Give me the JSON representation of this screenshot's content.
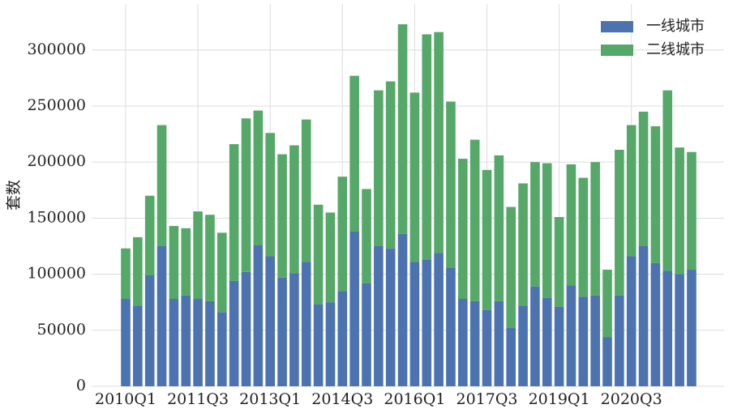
{
  "chart_data": {
    "type": "stacked_bar",
    "y_label": "套数",
    "categories": [
      "2010Q1",
      null,
      null,
      null,
      null,
      null,
      "2011Q3",
      null,
      null,
      null,
      null,
      null,
      "2013Q1",
      null,
      null,
      null,
      null,
      null,
      "2014Q3",
      null,
      null,
      null,
      null,
      null,
      "2016Q1",
      null,
      null,
      null,
      null,
      null,
      "2017Q3",
      null,
      null,
      null,
      null,
      null,
      "2019Q1",
      null,
      null,
      null,
      null,
      null,
      "2020Q3",
      null,
      null,
      null,
      null,
      null
    ],
    "series": [
      {
        "name": "一线城市",
        "color": "#4c72b0",
        "values": [
          78000,
          72000,
          99000,
          125000,
          78000,
          81000,
          78000,
          76000,
          66000,
          94000,
          102000,
          126000,
          116000,
          97000,
          101000,
          111000,
          73000,
          75000,
          85000,
          138000,
          92000,
          125000,
          123000,
          136000,
          111000,
          113000,
          119000,
          106000,
          78000,
          76000,
          68000,
          76000,
          52000,
          72000,
          89000,
          79000,
          71000,
          90000,
          80000,
          81000,
          44000,
          81000,
          116000,
          125000,
          110000,
          103000,
          100000,
          104000
        ]
      },
      {
        "name": "二线城市",
        "color": "#55a868",
        "values": [
          45000,
          61000,
          71000,
          108000,
          65000,
          60000,
          78000,
          77000,
          71000,
          122000,
          137000,
          120000,
          110000,
          110000,
          114000,
          127000,
          89000,
          80000,
          102000,
          139000,
          84000,
          139000,
          149000,
          187000,
          151000,
          201000,
          197000,
          148000,
          125000,
          144000,
          125000,
          130000,
          108000,
          109000,
          111000,
          120000,
          80000,
          108000,
          106000,
          119000,
          60000,
          130000,
          117000,
          120000,
          122000,
          161000,
          113000,
          105000
        ]
      }
    ],
    "ylim": [
      0,
      341000
    ],
    "yticks": [
      0,
      50000,
      100000,
      150000,
      200000,
      250000,
      300000
    ],
    "grid": true,
    "legend": "upper right"
  }
}
